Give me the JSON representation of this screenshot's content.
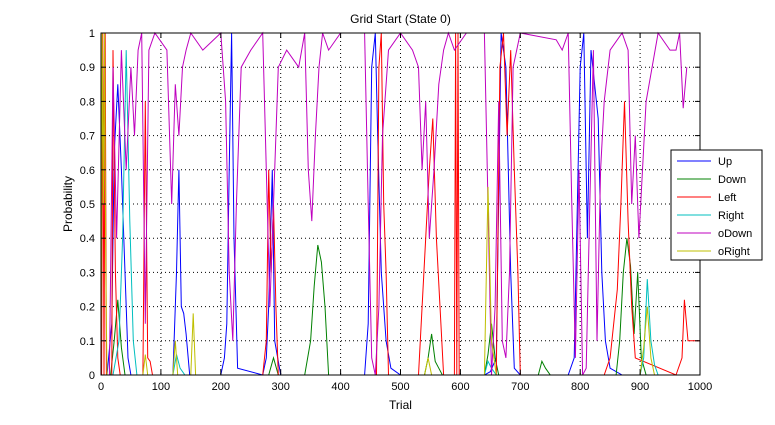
{
  "chart_data": {
    "type": "line",
    "title": "Grid Start (State 0)",
    "xlabel": "Trial",
    "ylabel": "Probability",
    "xlim": [
      0,
      1000
    ],
    "ylim": [
      0,
      1
    ],
    "x_ticks": [
      0,
      100,
      200,
      300,
      400,
      500,
      600,
      700,
      800,
      900,
      1000
    ],
    "y_ticks": [
      0,
      0.1,
      0.2,
      0.3,
      0.4,
      0.5,
      0.6,
      0.7,
      0.8,
      0.9,
      1
    ],
    "x_tick_labels": [
      "0",
      "100",
      "200",
      "300",
      "400",
      "500",
      "600",
      "700",
      "800",
      "900",
      "1000"
    ],
    "y_tick_labels": [
      "0",
      "0.1",
      "0.2",
      "0.3",
      "0.4",
      "0.5",
      "0.6",
      "0.7",
      "0.8",
      "0.9",
      "1"
    ],
    "grid": true,
    "grid_style": "dotted",
    "legend_position": "right",
    "series": [
      {
        "name": "Up",
        "color": "#0000ff",
        "x": [
          0,
          10,
          18,
          22,
          28,
          34,
          40,
          45,
          50,
          60,
          120,
          126,
          130,
          134,
          138,
          142,
          148,
          200,
          206,
          210,
          214,
          218,
          222,
          228,
          270,
          276,
          280,
          286,
          290,
          300,
          440,
          446,
          452,
          458,
          462,
          468,
          476,
          484,
          500,
          640,
          650,
          660,
          668,
          676,
          684,
          690,
          700,
          780,
          790,
          800,
          806,
          812,
          818,
          824,
          830,
          836,
          842,
          850,
          870,
          1000
        ],
        "y": [
          0,
          0,
          0.15,
          0.65,
          0.85,
          0.6,
          0.3,
          0.05,
          0,
          0,
          0,
          0.3,
          0.6,
          0.2,
          0.18,
          0.12,
          0,
          0,
          0.05,
          0.15,
          0.6,
          1,
          0.4,
          0.02,
          0,
          0.05,
          0.2,
          0.6,
          0.1,
          0,
          0,
          0.15,
          0.9,
          1,
          0.7,
          0.3,
          0.1,
          0.02,
          0,
          0,
          0.01,
          0.05,
          1,
          0.9,
          0.3,
          0.02,
          0,
          0,
          0.05,
          0.9,
          1,
          0.4,
          0.95,
          0.85,
          0.75,
          0.3,
          0.1,
          0.02,
          0,
          0
        ]
      },
      {
        "name": "Down",
        "color": "#008000",
        "x": [
          0,
          16,
          22,
          28,
          34,
          40,
          60,
          280,
          288,
          296,
          340,
          350,
          356,
          362,
          368,
          374,
          380,
          540,
          546,
          552,
          558,
          564,
          570,
          640,
          646,
          652,
          658,
          664,
          730,
          736,
          742,
          750,
          860,
          866,
          872,
          878,
          884,
          890,
          896,
          902,
          910,
          1000
        ],
        "y": [
          0,
          0,
          0.1,
          0.22,
          0.08,
          0,
          0,
          0,
          0.05,
          0,
          0,
          0.1,
          0.26,
          0.38,
          0.33,
          0.2,
          0,
          0,
          0.05,
          0.12,
          0.04,
          0.02,
          0,
          0,
          0.06,
          0.15,
          0.05,
          0,
          0,
          0.04,
          0.02,
          0,
          0,
          0.1,
          0.3,
          0.4,
          0.32,
          0.12,
          0.3,
          0.05,
          0,
          0
        ]
      },
      {
        "name": "Left",
        "color": "#ff0000",
        "x": [
          0,
          1,
          3,
          5,
          7,
          9,
          18,
          20,
          24,
          28,
          32,
          70,
          74,
          78,
          82,
          86,
          270,
          276,
          280,
          284,
          288,
          292,
          296,
          460,
          464,
          468,
          472,
          476,
          480,
          530,
          536,
          542,
          548,
          554,
          560,
          566,
          572,
          590,
          592,
          594,
          596,
          598,
          660,
          666,
          672,
          678,
          684,
          690,
          696,
          700,
          840,
          850,
          856,
          862,
          868,
          874,
          880,
          886,
          892,
          960,
          970,
          974,
          980,
          1000
        ],
        "y": [
          1,
          0,
          1,
          0,
          1,
          0,
          0,
          0.95,
          0.3,
          0.05,
          0,
          0,
          0.8,
          0.05,
          0.04,
          0,
          0,
          0.1,
          0.6,
          0.3,
          0.5,
          0.2,
          0,
          0,
          0.9,
          1,
          0.5,
          0.3,
          0,
          0,
          0.2,
          0.4,
          0.6,
          0.75,
          0.4,
          0.2,
          0,
          0,
          1,
          0,
          1,
          0,
          0,
          0.9,
          1,
          0.7,
          0.95,
          0.6,
          0.3,
          0,
          0,
          0.05,
          0.15,
          0.25,
          0.5,
          0.8,
          0.45,
          0.2,
          0.05,
          0,
          0.05,
          0.22,
          0.1,
          0.1
        ]
      },
      {
        "name": "Right",
        "color": "#00bfbf",
        "x": [
          0,
          20,
          30,
          36,
          42,
          48,
          54,
          60,
          120,
          126,
          132,
          140,
          640,
          646,
          652,
          660,
          900,
          906,
          912,
          918,
          924,
          930,
          1000
        ],
        "y": [
          0,
          0,
          0.1,
          0.4,
          0.95,
          0.45,
          0.1,
          0,
          0,
          0.06,
          0.02,
          0,
          0,
          0.04,
          0.02,
          0,
          0,
          0.05,
          0.28,
          0.1,
          0.03,
          0,
          0
        ]
      },
      {
        "name": "oDown",
        "color": "#bf00bf",
        "x": [
          0,
          14,
          20,
          26,
          34,
          42,
          50,
          56,
          62,
          68,
          74,
          80,
          90,
          110,
          118,
          124,
          130,
          136,
          142,
          150,
          170,
          200,
          208,
          214,
          220,
          226,
          234,
          250,
          270,
          276,
          282,
          288,
          296,
          310,
          330,
          340,
          346,
          352,
          358,
          364,
          370,
          380,
          400,
          440,
          446,
          452,
          458,
          464,
          470,
          480,
          500,
          520,
          530,
          536,
          542,
          548,
          556,
          564,
          572,
          580,
          590,
          610,
          640,
          646,
          652,
          658,
          664,
          670,
          676,
          682,
          688,
          694,
          700,
          760,
          770,
          780,
          786,
          792,
          798,
          804,
          810,
          816,
          822,
          828,
          834,
          840,
          850,
          870,
          880,
          886,
          892,
          898,
          904,
          910,
          930,
          950,
          960,
          966,
          972,
          978
        ],
        "y": [
          0,
          0,
          0.9,
          0.4,
          0.95,
          0.6,
          0.9,
          0.7,
          0.95,
          1,
          0.15,
          0.95,
          1,
          0.95,
          0.5,
          0.85,
          0.7,
          0.9,
          0.95,
          1,
          0.95,
          1,
          0.8,
          0.3,
          0.1,
          0.5,
          0.9,
          0.95,
          1,
          0.6,
          0.2,
          0.5,
          0.9,
          0.95,
          0.9,
          1,
          0.6,
          0.45,
          0.7,
          0.9,
          1,
          0.95,
          1,
          1,
          0.5,
          0.05,
          0,
          0.2,
          0.7,
          0.95,
          1,
          0.95,
          0.9,
          0.6,
          0.8,
          0.4,
          0.6,
          0.85,
          0.95,
          1,
          0.95,
          1,
          1,
          0.5,
          0,
          0.2,
          0.8,
          0.1,
          0.05,
          0.3,
          0.9,
          0.95,
          1,
          0.98,
          0.95,
          1,
          0.5,
          0.05,
          0.6,
          0,
          0.02,
          0.5,
          0.95,
          0.1,
          0.6,
          0.8,
          0.95,
          1,
          0.95,
          0.5,
          0.7,
          0.4,
          0.6,
          0.8,
          1,
          0.95,
          0.95,
          1,
          0.78,
          0.9
        ]
      },
      {
        "name": "oRight",
        "color": "#bfbf00",
        "x": [
          0,
          2,
          4,
          6,
          8,
          10,
          70,
          74,
          78,
          120,
          124,
          128,
          150,
          154,
          158,
          540,
          546,
          552,
          640,
          646,
          652,
          660,
          900,
          906,
          912,
          918,
          924,
          1000
        ],
        "y": [
          0,
          1,
          0.5,
          1,
          0.3,
          0,
          0,
          0.06,
          0,
          0,
          0.1,
          0,
          0,
          0.18,
          0,
          0,
          0.05,
          0,
          0,
          0.55,
          0.1,
          0,
          0,
          0.08,
          0.2,
          0.05,
          0,
          0
        ]
      }
    ]
  }
}
